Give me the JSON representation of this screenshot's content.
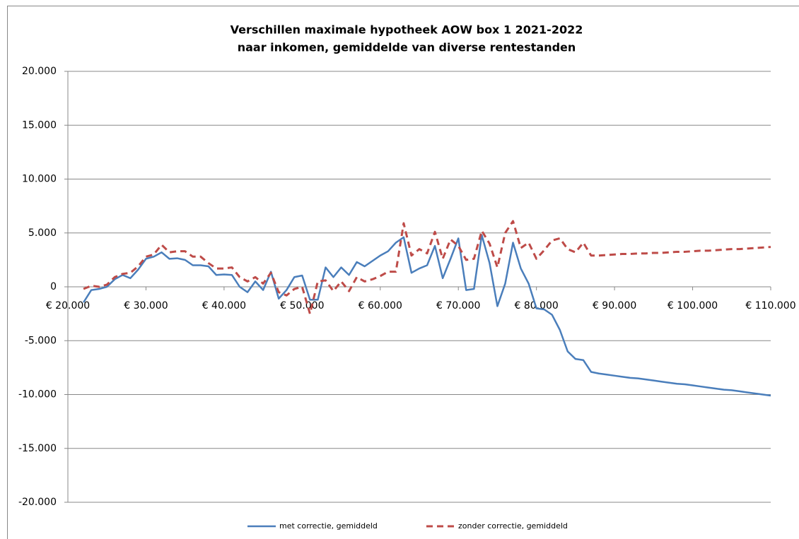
{
  "chart_data": {
    "type": "line",
    "title": [
      "Verschillen maximale hypotheek AOW box 1 2021-2022",
      "naar inkomen, gemiddelde van diverse rentestanden"
    ],
    "x": [
      22000,
      23000,
      24000,
      25000,
      26000,
      27000,
      28000,
      29000,
      30000,
      31000,
      32000,
      33000,
      34000,
      35000,
      36000,
      37000,
      38000,
      39000,
      40000,
      41000,
      42000,
      43000,
      44000,
      45000,
      46000,
      47000,
      48000,
      49000,
      50000,
      51000,
      52000,
      53000,
      54000,
      55000,
      56000,
      57000,
      58000,
      59000,
      60000,
      61000,
      62000,
      63000,
      64000,
      65000,
      66000,
      67000,
      68000,
      69000,
      70000,
      71000,
      72000,
      73000,
      74000,
      75000,
      76000,
      77000,
      78000,
      79000,
      80000,
      81000,
      82000,
      83000,
      84000,
      85000,
      86000,
      87000,
      88000,
      89000,
      90000,
      91000,
      92000,
      93000,
      94000,
      95000,
      96000,
      97000,
      98000,
      99000,
      100000,
      101000,
      102000,
      103000,
      104000,
      105000,
      106000,
      107000,
      108000,
      109000,
      110000
    ],
    "series": [
      {
        "name": "met correctie,  gemiddeld",
        "color": "#4a7ebb",
        "dash": false,
        "values": [
          -1450,
          -300,
          -200,
          0,
          700,
          1100,
          800,
          1600,
          2600,
          2800,
          3200,
          2600,
          2650,
          2500,
          2000,
          2000,
          1900,
          1100,
          1150,
          1100,
          0,
          -500,
          500,
          -300,
          1400,
          -1100,
          -300,
          900,
          1050,
          -1200,
          -1200,
          1800,
          900,
          1800,
          1100,
          2300,
          1900,
          2400,
          2900,
          3300,
          4100,
          4600,
          1300,
          1700,
          2000,
          3800,
          800,
          2600,
          4500,
          -300,
          -200,
          4800,
          2200,
          -1800,
          300,
          4100,
          1700,
          300,
          -2000,
          -2100,
          -2600,
          -4000,
          -6000,
          -6700,
          -6800,
          -7900,
          -8050,
          -8150,
          -8250,
          -8350,
          -8450,
          -8500,
          -8600,
          -8700,
          -8800,
          -8900,
          -9000,
          -9050,
          -9150,
          -9250,
          -9350,
          -9450,
          -9550,
          -9600,
          -9700,
          -9800,
          -9900,
          -10000,
          -10100
        ]
      },
      {
        "name": "zonder correctie, gemiddeld",
        "color": "#be4b48",
        "dash": true,
        "values": [
          -200,
          100,
          0,
          200,
          900,
          1200,
          1300,
          1900,
          2800,
          3000,
          3900,
          3200,
          3300,
          3300,
          2800,
          2800,
          2200,
          1700,
          1700,
          1800,
          900,
          500,
          900,
          300,
          1300,
          -500,
          -800,
          -200,
          0,
          -2500,
          500,
          600,
          -400,
          500,
          -400,
          900,
          500,
          700,
          1000,
          1400,
          1400,
          5900,
          2900,
          3500,
          3100,
          5100,
          2600,
          4400,
          3800,
          2500,
          2600,
          5200,
          4000,
          1800,
          5000,
          6100,
          3600,
          4100,
          2600,
          3400,
          4300,
          4500,
          3500,
          3200,
          4100,
          2900,
          2900,
          2950,
          3000,
          3050,
          3050,
          3100,
          3100,
          3150,
          3150,
          3200,
          3250,
          3250,
          3300,
          3350,
          3350,
          3400,
          3450,
          3500,
          3500,
          3550,
          3600,
          3650,
          3700
        ]
      }
    ],
    "xlim": [
      20000,
      110000
    ],
    "xticks": [
      {
        "value": 20000,
        "label": "€ 20.000"
      },
      {
        "value": 30000,
        "label": "€ 30.000"
      },
      {
        "value": 40000,
        "label": "€ 40.000"
      },
      {
        "value": 50000,
        "label": "€ 50.000"
      },
      {
        "value": 60000,
        "label": "€ 60.000"
      },
      {
        "value": 70000,
        "label": "€ 70.000"
      },
      {
        "value": 80000,
        "label": "€ 80.000"
      },
      {
        "value": 90000,
        "label": "€ 90.000"
      },
      {
        "value": 100000,
        "label": "€ 100.000"
      },
      {
        "value": 110000,
        "label": "€ 110.000"
      }
    ],
    "ylim": [
      -20000,
      20000
    ],
    "yticks": [
      {
        "value": -20000,
        "label": "-20.000"
      },
      {
        "value": -15000,
        "label": "-15.000"
      },
      {
        "value": -10000,
        "label": "-10.000"
      },
      {
        "value": -5000,
        "label": "-5.000"
      },
      0,
      {
        "value": 5000,
        "label": "5.000"
      },
      {
        "value": 10000,
        "label": "10.000"
      },
      {
        "value": 15000,
        "label": "15.000"
      },
      {
        "value": 20000,
        "label": "20.000"
      }
    ],
    "grid": true,
    "legend": "bottom"
  }
}
